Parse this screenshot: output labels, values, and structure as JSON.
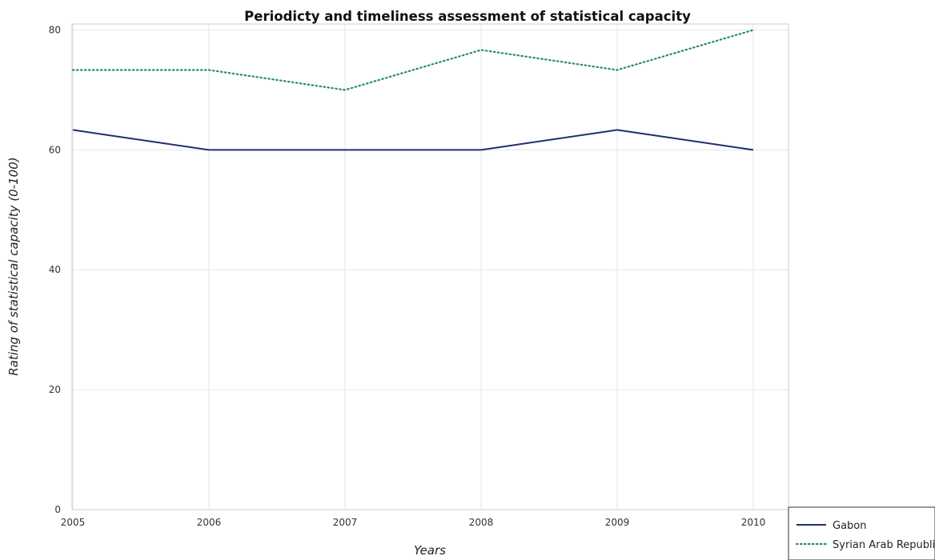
{
  "chart_data": {
    "type": "line",
    "title": "Periodicty and timeliness assessment of statistical capacity",
    "xlabel": "Years",
    "ylabel": "Rating of statistical capacity (0-100)",
    "categories": [
      "2005",
      "2006",
      "2007",
      "2008",
      "2009",
      "2010"
    ],
    "yticks": [
      "0",
      "20",
      "40",
      "60",
      "80"
    ],
    "ylim": [
      0,
      81
    ],
    "grid": true,
    "legend_position": "bottom-right",
    "series": [
      {
        "name": "Gabon",
        "values": [
          63.33,
          60,
          60,
          60,
          63.33,
          60
        ],
        "color": "#1f2f6b",
        "style": "solid"
      },
      {
        "name": "Syrian Arab Republic",
        "values": [
          73.33,
          73.33,
          70,
          76.67,
          73.33,
          80
        ],
        "color": "#2a8a72",
        "style": "dotted"
      }
    ]
  }
}
